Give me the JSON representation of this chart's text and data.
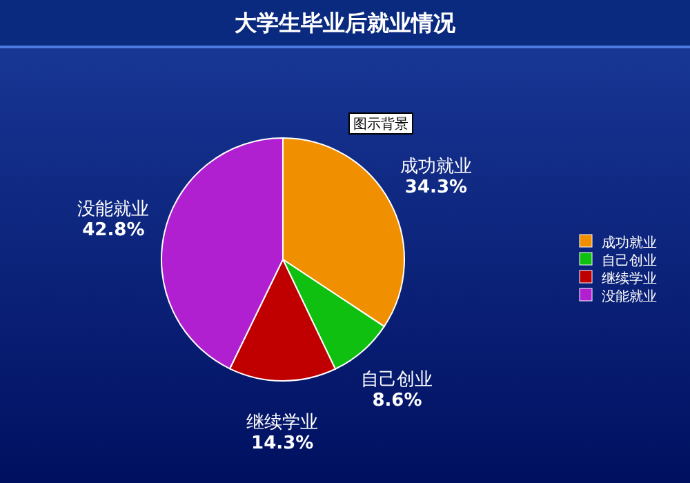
{
  "chart_data": {
    "type": "pie",
    "title": "大学生毕业后就业情况",
    "categories": [
      "成功就业",
      "自己创业",
      "继续学业",
      "没能就业"
    ],
    "values": [
      34.3,
      8.6,
      14.3,
      42.8
    ],
    "colors": [
      "#f09000",
      "#10c010",
      "#c00000",
      "#b020d0"
    ],
    "value_labels": [
      "34.3%",
      "8.6%",
      "14.3%",
      "42.8%"
    ],
    "legend": "right",
    "annotations": [
      "图示背景"
    ]
  }
}
